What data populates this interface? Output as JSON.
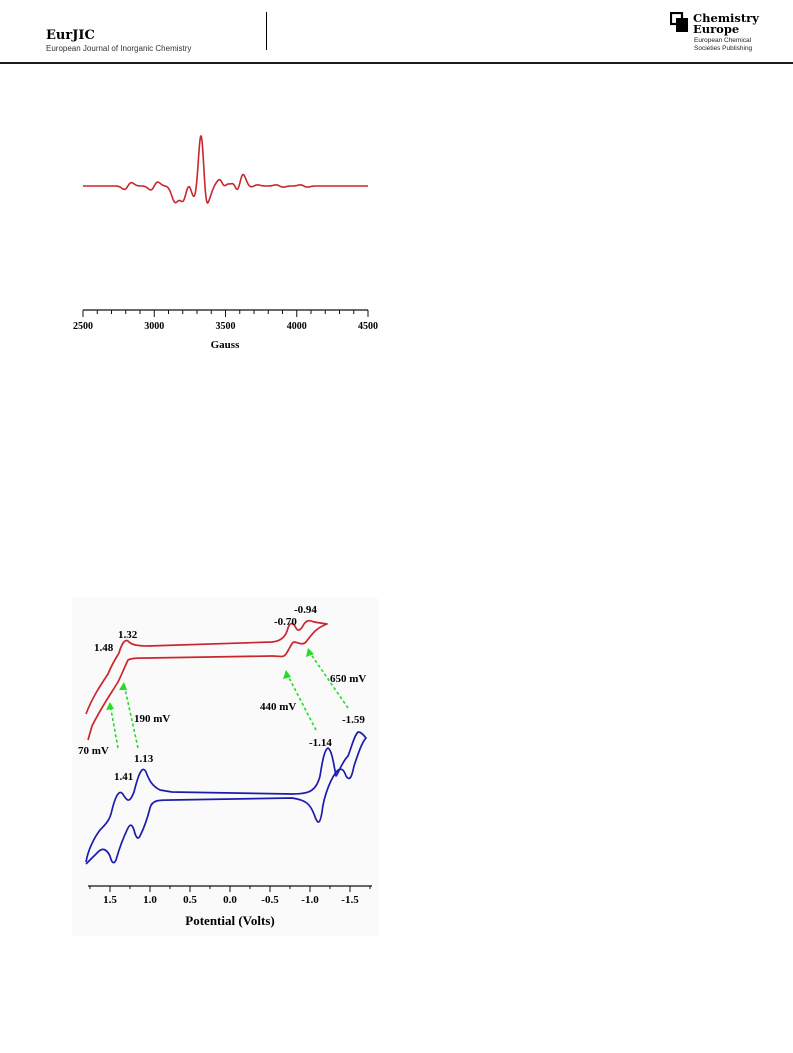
{
  "header": {
    "journal_abbr": "EurJIC",
    "journal_full": "European Journal of Inorganic Chemistry",
    "publisher_line1": "Chemistry",
    "publisher_line2": "Europe",
    "publisher_sub1": "European Chemical",
    "publisher_sub2": "Societies Publishing"
  },
  "colors": {
    "epr_trace": "#c8272d",
    "cv_red": "#c8272d",
    "cv_blue": "#1c1cae",
    "arrow": "#22dd22"
  },
  "chart_data": [
    {
      "type": "line",
      "xlabel": "Gauss",
      "ylabel": "",
      "xlim": [
        2500,
        4500
      ],
      "x_ticks": [
        "2500",
        "3000",
        "3500",
        "4000",
        "4500"
      ],
      "grid": false,
      "series": [
        {
          "x": [
            2815,
            3000,
            3160,
            3185,
            3210,
            3235,
            3265,
            3290,
            3325,
            3340,
            3360,
            3410,
            3450,
            3500,
            3545,
            3600,
            3700,
            3880,
            4050
          ],
          "y": [
            0.06,
            0.07,
            0.18,
            0.14,
            0.28,
            0.36,
            0.26,
            0.4,
            1.0,
            -0.95,
            0.36,
            0.25,
            0.22,
            0.18,
            0.15,
            0.2,
            0.02,
            -0.02,
            -0.02
          ]
        }
      ]
    },
    {
      "type": "line",
      "xlabel": "Potential (Volts)",
      "ylabel": "",
      "xlim": [
        1.8,
        -1.8
      ],
      "x_ticks": [
        "1.5",
        "1.0",
        "0.5",
        "0.0",
        "-0.5",
        "-1.0",
        "-1.5"
      ],
      "grid": false,
      "series": [
        {
          "peaks": [
            1.48,
            1.32,
            -0.7,
            -0.94
          ]
        },
        {
          "peaks": [
            1.41,
            1.13,
            -1.14,
            -1.59
          ]
        }
      ],
      "annotations": [
        "1.32",
        "1.48",
        "-0.70",
        "-0.94",
        "1.41",
        "1.13",
        "-1.14",
        "-1.59",
        "70 mV",
        "190 mV",
        "440 mV",
        "650 mV"
      ]
    }
  ]
}
